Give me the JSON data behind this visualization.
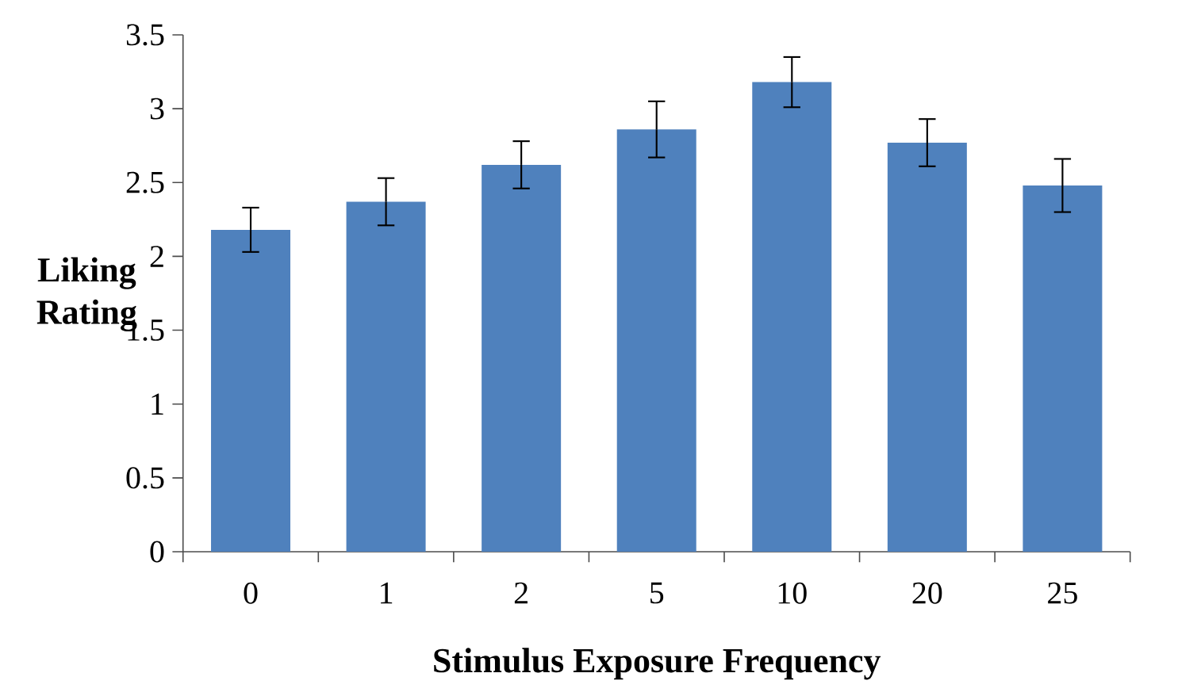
{
  "chart_data": {
    "type": "bar",
    "xlabel": "Stimulus Exposure Frequency",
    "ylabel": "Liking Rating",
    "categories": [
      "0",
      "1",
      "2",
      "5",
      "10",
      "20",
      "25"
    ],
    "values": [
      2.18,
      2.37,
      2.62,
      2.86,
      3.18,
      2.77,
      2.48
    ],
    "errors": [
      0.15,
      0.16,
      0.16,
      0.19,
      0.17,
      0.16,
      0.18
    ],
    "color": "#4f81bd",
    "ylim": [
      0,
      3.5
    ],
    "yticks": [
      0,
      0.5,
      1,
      1.5,
      2,
      2.5,
      3,
      3.5
    ],
    "grid": false
  }
}
